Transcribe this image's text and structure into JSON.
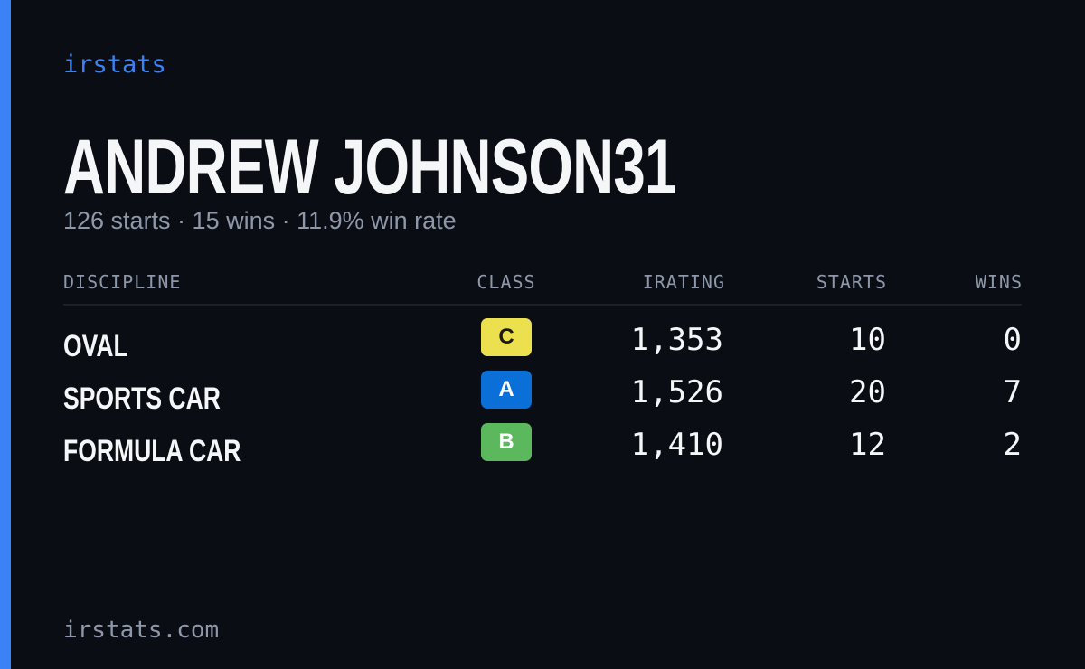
{
  "brand": "irstats",
  "header": {
    "title": "ANDREW JOHNSON31",
    "subtitle": "126 starts · 15 wins · 11.9% win rate"
  },
  "table": {
    "columns": [
      "DISCIPLINE",
      "CLASS",
      "IRATING",
      "STARTS",
      "WINS"
    ],
    "rows": [
      {
        "discipline": "OVAL",
        "class": "C",
        "class_color": "#ede04f",
        "irating": "1,353",
        "starts": "10",
        "wins": "0"
      },
      {
        "discipline": "SPORTS CAR",
        "class": "A",
        "class_color": "#0b6fd8",
        "irating": "1,526",
        "starts": "20",
        "wins": "7"
      },
      {
        "discipline": "FORMULA CAR",
        "class": "B",
        "class_color": "#5cb85c",
        "irating": "1,410",
        "starts": "12",
        "wins": "2"
      }
    ]
  },
  "footer": "irstats.com"
}
